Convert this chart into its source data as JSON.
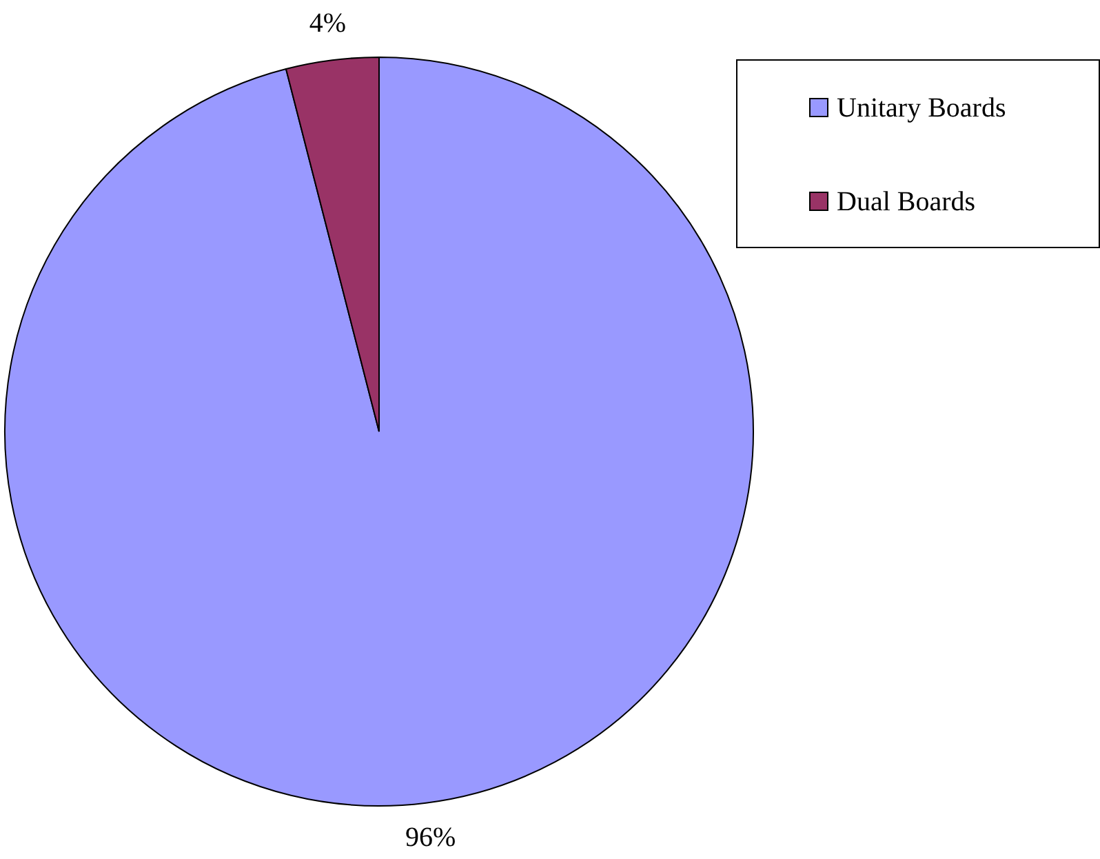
{
  "chart_data": {
    "type": "pie",
    "categories": [
      "Unitary Boards",
      "Dual Boards"
    ],
    "values": [
      96,
      4
    ],
    "colors": [
      "#9999ff",
      "#993366"
    ],
    "value_labels": [
      "96%",
      "4%"
    ],
    "legend": "top right"
  }
}
